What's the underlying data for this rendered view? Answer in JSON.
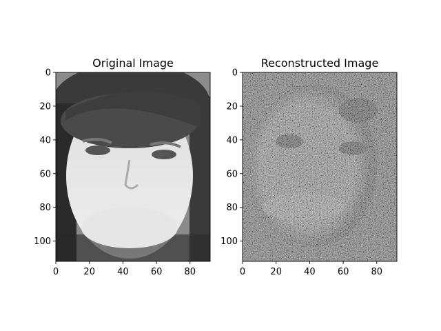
{
  "chart_data": [
    {
      "type": "heatmap",
      "title": "Original Image",
      "xlabel": "",
      "ylabel": "",
      "colormap": "gray",
      "image_size": [
        92,
        112
      ],
      "xlim": [
        0,
        92
      ],
      "ylim": [
        112,
        0
      ],
      "xticks": [
        0,
        20,
        40,
        60,
        80
      ],
      "yticks": [
        0,
        20,
        40,
        60,
        80,
        100
      ],
      "content": "face"
    },
    {
      "type": "heatmap",
      "title": "Reconstructed Image",
      "xlabel": "",
      "ylabel": "",
      "colormap": "gray",
      "image_size": [
        92,
        112
      ],
      "xlim": [
        0,
        92
      ],
      "ylim": [
        112,
        0
      ],
      "xticks": [
        0,
        20,
        40,
        60,
        80
      ],
      "yticks": [
        0,
        20,
        40,
        60,
        80,
        100
      ],
      "content": "noisy-face"
    }
  ]
}
